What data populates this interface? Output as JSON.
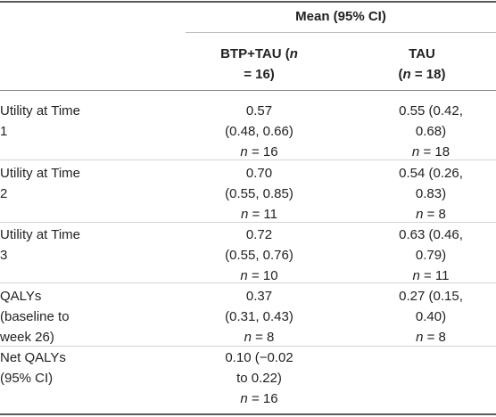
{
  "header": {
    "group": "Mean (95% CI)",
    "col1_line1": "BTP+TAU (",
    "col1_n": "n",
    "col1_line2": "= 16)",
    "col2_line1": "TAU",
    "col2_line2_pre": "(",
    "col2_n": "n",
    "col2_line2_post": " = 18)"
  },
  "rows": [
    {
      "label": [
        "Utility at Time",
        "1"
      ],
      "btp": [
        "0.57",
        "(0.48, 0.66)",
        "= 16"
      ],
      "tau": [
        "0.55 (0.42,",
        "0.68)",
        "= 18"
      ]
    },
    {
      "label": [
        "Utility at Time",
        "2"
      ],
      "btp": [
        "0.70",
        "(0.55, 0.85)",
        "= 11"
      ],
      "tau": [
        "0.54 (0.26,",
        "0.83)",
        "= 8"
      ]
    },
    {
      "label": [
        "Utility at Time",
        "3"
      ],
      "btp": [
        "0.72",
        "(0.55, 0.76)",
        "= 10"
      ],
      "tau": [
        "0.63 (0.46,",
        "0.79)",
        "= 11"
      ]
    },
    {
      "label": [
        "QALYs",
        "(baseline to",
        "week 26)"
      ],
      "btp": [
        "0.37",
        "(0.31, 0.43)",
        "= 8"
      ],
      "tau": [
        "0.27 (0.15,",
        "0.40)",
        "= 8"
      ]
    },
    {
      "label": [
        "Net QALYs",
        "(95% CI)"
      ],
      "btp": [
        "0.10 (−0.02",
        "to 0.22)",
        "= 16"
      ],
      "tau": []
    }
  ],
  "n_symbol": "n"
}
